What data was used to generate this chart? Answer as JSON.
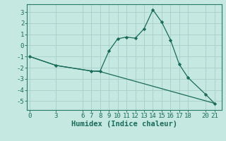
{
  "xlabel": "Humidex (Indice chaleur)",
  "ylabel": "",
  "bg_color": "#c5e8e0",
  "grid_color": "#a8cfc8",
  "line_color": "#1a6b5a",
  "spine_color": "#2a7a6a",
  "line1_x": [
    0,
    3,
    7,
    8,
    9,
    10,
    11,
    12,
    13,
    14,
    15,
    16,
    17,
    18,
    20,
    21
  ],
  "line1_y": [
    -1.0,
    -1.8,
    -2.3,
    -2.3,
    -0.5,
    0.6,
    0.75,
    0.65,
    1.5,
    3.2,
    2.1,
    0.5,
    -1.7,
    -2.9,
    -4.4,
    -5.2
  ],
  "line2_x": [
    0,
    3,
    7,
    8,
    21
  ],
  "line2_y": [
    -1.0,
    -1.8,
    -2.3,
    -2.35,
    -5.2
  ],
  "xticks": [
    0,
    3,
    6,
    7,
    8,
    9,
    10,
    11,
    12,
    13,
    14,
    15,
    16,
    17,
    18,
    20,
    21
  ],
  "yticks": [
    -5,
    -4,
    -3,
    -2,
    -1,
    0,
    1,
    2,
    3
  ],
  "xlim": [
    -0.3,
    21.8
  ],
  "ylim": [
    -5.8,
    3.7
  ],
  "label_fontsize": 7.5,
  "tick_fontsize": 6.5
}
